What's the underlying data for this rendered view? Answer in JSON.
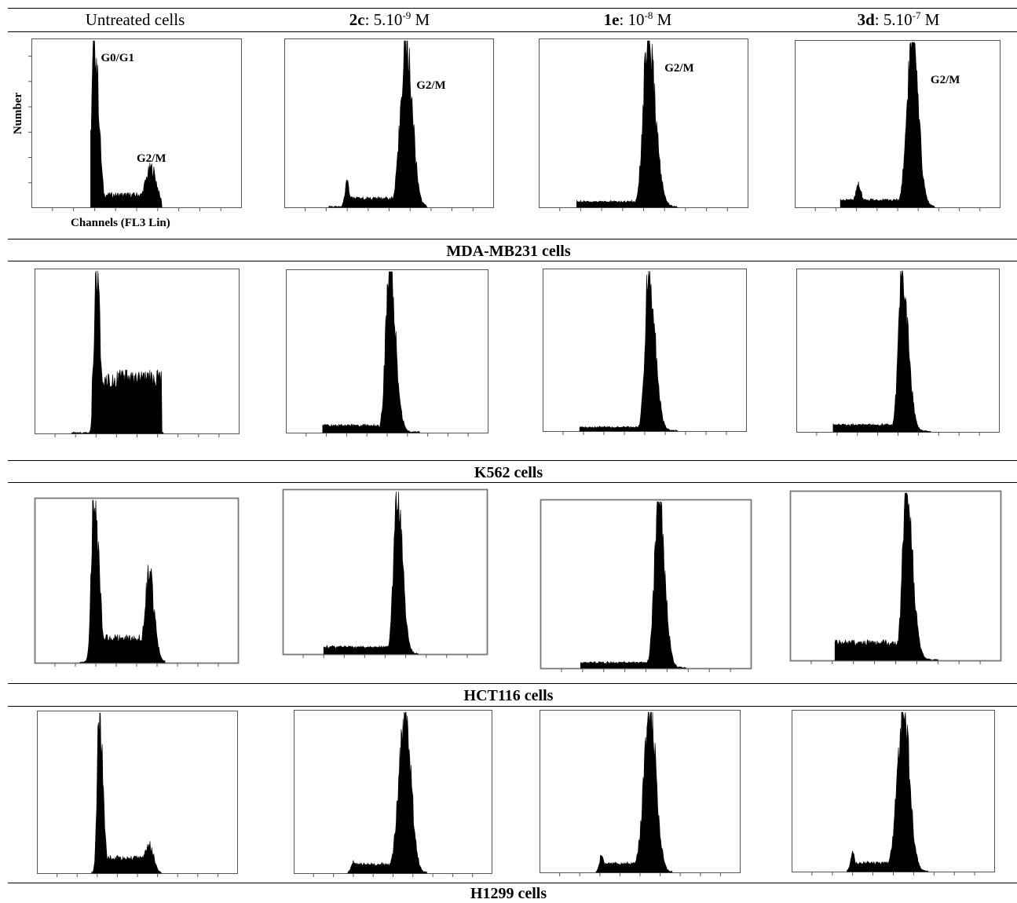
{
  "columns": [
    {
      "pre": "",
      "bold": "",
      "mid": "Untreated cells",
      "sup": "",
      "post": ""
    },
    {
      "pre": "",
      "bold": "2c",
      "mid": ": 5.10",
      "sup": "-9",
      "post": " M"
    },
    {
      "pre": "",
      "bold": "1e",
      "mid": ": 10",
      "sup": "-8",
      "post": " M"
    },
    {
      "pre": "",
      "bold": "3d",
      "mid": ": 5.10",
      "sup": "-7",
      "post": " M"
    }
  ],
  "sections": [
    {
      "label": "MDA-MB231 cells"
    },
    {
      "label": "K562 cells"
    },
    {
      "label": "HCT116 cells"
    },
    {
      "label": "H1299 cells"
    }
  ],
  "axis": {
    "ylabel": "Number",
    "xlabel": "Channels (FL3 Lin)"
  },
  "chart_data": [
    {
      "type": "area",
      "cell_line": "MDA-MB231 cells",
      "treatment": "Untreated cells",
      "annotations": [
        {
          "text": "G0/G1"
        },
        {
          "text": "G2/M"
        }
      ],
      "peaks": [
        {
          "x": 0.3,
          "h": 1.0,
          "wl": 0.014,
          "wr": 0.02
        },
        {
          "x": 0.57,
          "h": 0.23,
          "wl": 0.03,
          "wr": 0.025
        }
      ],
      "plateau": {
        "from": 0.34,
        "to": 0.55,
        "level": 0.07
      },
      "range": [
        0.28,
        0.62
      ]
    },
    {
      "type": "area",
      "cell_line": "MDA-MB231 cells",
      "treatment": "2c: 5.10-9 M",
      "annotations": [
        {
          "text": "G2/M"
        }
      ],
      "peaks": [
        {
          "x": 0.58,
          "h": 1.0,
          "wl": 0.025,
          "wr": 0.03
        },
        {
          "x": 0.3,
          "h": 0.15,
          "wl": 0.01,
          "wr": 0.01
        }
      ],
      "plateau": {
        "from": 0.3,
        "to": 0.55,
        "level": 0.05
      },
      "range": [
        0.21,
        0.68
      ]
    },
    {
      "type": "area",
      "cell_line": "MDA-MB231 cells",
      "treatment": "1e: 10-8 M",
      "annotations": [
        {
          "text": "G2/M"
        }
      ],
      "peaks": [
        {
          "x": 0.52,
          "h": 1.0,
          "wl": 0.022,
          "wr": 0.035
        }
      ],
      "plateau": {
        "from": 0.18,
        "to": 0.48,
        "level": 0.03
      },
      "range": [
        0.18,
        0.66
      ]
    },
    {
      "type": "area",
      "cell_line": "MDA-MB231 cells",
      "treatment": "3d: 5.10-7 M",
      "annotations": [
        {
          "text": "G2/M"
        }
      ],
      "peaks": [
        {
          "x": 0.57,
          "h": 1.0,
          "wl": 0.025,
          "wr": 0.03
        },
        {
          "x": 0.31,
          "h": 0.13,
          "wl": 0.015,
          "wr": 0.015
        }
      ],
      "plateau": {
        "from": 0.22,
        "to": 0.54,
        "level": 0.04
      },
      "range": [
        0.22,
        0.68
      ]
    },
    {
      "type": "area",
      "cell_line": "K562 cells",
      "treatment": "Untreated cells",
      "annotations": [],
      "peaks": [
        {
          "x": 0.3,
          "h": 1.0,
          "wl": 0.01,
          "wr": 0.02
        },
        {
          "x": 0.55,
          "h": 0.25,
          "wl": 0.05,
          "wr": 0.02
        }
      ],
      "plateau": {
        "from": 0.28,
        "to": 0.62,
        "level": 0.33
      },
      "range": [
        0.18,
        0.63
      ]
    },
    {
      "type": "area",
      "cell_line": "K562 cells",
      "treatment": "2c: 5.10-9 M",
      "annotations": [],
      "peaks": [
        {
          "x": 0.51,
          "h": 1.0,
          "wl": 0.018,
          "wr": 0.03
        }
      ],
      "plateau": {
        "from": 0.18,
        "to": 0.46,
        "level": 0.04
      },
      "range": [
        0.18,
        0.66
      ]
    },
    {
      "type": "area",
      "cell_line": "K562 cells",
      "treatment": "1e: 10-8 M",
      "annotations": [],
      "peaks": [
        {
          "x": 0.52,
          "h": 1.0,
          "wl": 0.018,
          "wr": 0.03
        }
      ],
      "plateau": {
        "from": 0.18,
        "to": 0.47,
        "level": 0.02
      },
      "range": [
        0.18,
        0.66
      ]
    },
    {
      "type": "area",
      "cell_line": "K562 cells",
      "treatment": "3d: 5.10-7 M",
      "annotations": [],
      "peaks": [
        {
          "x": 0.52,
          "h": 1.0,
          "wl": 0.018,
          "wr": 0.03
        }
      ],
      "plateau": {
        "from": 0.18,
        "to": 0.47,
        "level": 0.04
      },
      "range": [
        0.18,
        0.66
      ]
    },
    {
      "type": "area",
      "cell_line": "HCT116 cells",
      "treatment": "Untreated cells",
      "annotations": [],
      "peaks": [
        {
          "x": 0.29,
          "h": 1.0,
          "wl": 0.012,
          "wr": 0.025
        },
        {
          "x": 0.56,
          "h": 0.55,
          "wl": 0.02,
          "wr": 0.025
        }
      ],
      "plateau": {
        "from": 0.27,
        "to": 0.6,
        "level": 0.15
      },
      "range": [
        0.22,
        0.64
      ]
    },
    {
      "type": "area",
      "cell_line": "HCT116 cells",
      "treatment": "2c: 5.10-9 M",
      "annotations": [],
      "peaks": [
        {
          "x": 0.56,
          "h": 1.0,
          "wl": 0.018,
          "wr": 0.025
        }
      ],
      "plateau": {
        "from": 0.2,
        "to": 0.52,
        "level": 0.04
      },
      "range": [
        0.2,
        0.66
      ]
    },
    {
      "type": "area",
      "cell_line": "HCT116 cells",
      "treatment": "1e: 10-8 M",
      "annotations": [],
      "peaks": [
        {
          "x": 0.56,
          "h": 1.0,
          "wl": 0.02,
          "wr": 0.028
        }
      ],
      "plateau": {
        "from": 0.19,
        "to": 0.52,
        "level": 0.03
      },
      "range": [
        0.19,
        0.69
      ]
    },
    {
      "type": "area",
      "cell_line": "HCT116 cells",
      "treatment": "3d: 5.10-7 M",
      "annotations": [],
      "peaks": [
        {
          "x": 0.55,
          "h": 1.0,
          "wl": 0.018,
          "wr": 0.03
        }
      ],
      "plateau": {
        "from": 0.21,
        "to": 0.52,
        "level": 0.1
      },
      "range": [
        0.21,
        0.7
      ]
    },
    {
      "type": "area",
      "cell_line": "H1299 cells",
      "treatment": "Untreated cells",
      "annotations": [],
      "peaks": [
        {
          "x": 0.31,
          "h": 1.0,
          "wl": 0.01,
          "wr": 0.018
        },
        {
          "x": 0.56,
          "h": 0.17,
          "wl": 0.03,
          "wr": 0.02
        }
      ],
      "plateau": {
        "from": 0.29,
        "to": 0.58,
        "level": 0.09
      },
      "range": [
        0.27,
        0.62
      ]
    },
    {
      "type": "area",
      "cell_line": "H1299 cells",
      "treatment": "2c: 5.10-9 M",
      "annotations": [],
      "peaks": [
        {
          "x": 0.56,
          "h": 1.0,
          "wl": 0.03,
          "wr": 0.03
        },
        {
          "x": 0.3,
          "h": 0.07,
          "wl": 0.01,
          "wr": 0.01
        }
      ],
      "plateau": {
        "from": 0.3,
        "to": 0.52,
        "level": 0.05
      },
      "range": [
        0.27,
        0.67
      ]
    },
    {
      "type": "area",
      "cell_line": "H1299 cells",
      "treatment": "1e: 10-8 M",
      "annotations": [],
      "peaks": [
        {
          "x": 0.55,
          "h": 1.0,
          "wl": 0.03,
          "wr": 0.03
        },
        {
          "x": 0.31,
          "h": 0.11,
          "wl": 0.01,
          "wr": 0.01
        }
      ],
      "plateau": {
        "from": 0.31,
        "to": 0.52,
        "level": 0.05
      },
      "range": [
        0.28,
        0.66
      ]
    },
    {
      "type": "area",
      "cell_line": "H1299 cells",
      "treatment": "3d: 5.10-7 M",
      "annotations": [],
      "peaks": [
        {
          "x": 0.55,
          "h": 1.0,
          "wl": 0.03,
          "wr": 0.03
        },
        {
          "x": 0.3,
          "h": 0.11,
          "wl": 0.01,
          "wr": 0.01
        }
      ],
      "plateau": {
        "from": 0.31,
        "to": 0.52,
        "level": 0.05
      },
      "range": [
        0.27,
        0.67
      ]
    }
  ]
}
